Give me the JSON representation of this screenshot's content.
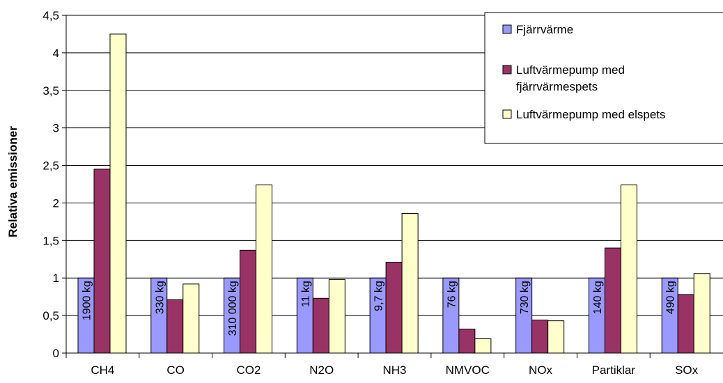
{
  "chart_data": {
    "type": "bar",
    "ylabel": "Relativa emissioner",
    "xlabel": "",
    "ylim": [
      0,
      4.5
    ],
    "yticks": [
      "0",
      "0,5",
      "1",
      "1,5",
      "2",
      "2,5",
      "3",
      "3,5",
      "4",
      "4,5"
    ],
    "grid": true,
    "legend_position": "top-right",
    "categories": [
      "CH4",
      "CO",
      "CO2",
      "N2O",
      "NH3",
      "NMVOC",
      "NOx",
      "Partiklar",
      "SOx"
    ],
    "series": [
      {
        "name": "Fjärrvärme",
        "color": "#9999ff",
        "values": [
          1,
          1,
          1,
          1,
          1,
          1,
          1,
          1,
          1
        ]
      },
      {
        "name": "Luftvärmepump med fjärrvärmespets",
        "color": "#993366",
        "values": [
          2.45,
          0.71,
          1.37,
          0.73,
          1.21,
          0.32,
          0.44,
          1.4,
          0.78
        ]
      },
      {
        "name": "Luftvärmepump med elspets",
        "color": "#ffffcc",
        "values": [
          4.25,
          0.92,
          2.24,
          0.98,
          1.86,
          0.19,
          0.43,
          2.24,
          1.06
        ]
      }
    ],
    "bar_labels": [
      "1900 kg",
      "330 kg",
      "310 000 kg",
      "11 kg",
      "9,7 kg",
      "76 kg",
      "730 kg",
      "140 kg",
      "490 kg"
    ]
  }
}
